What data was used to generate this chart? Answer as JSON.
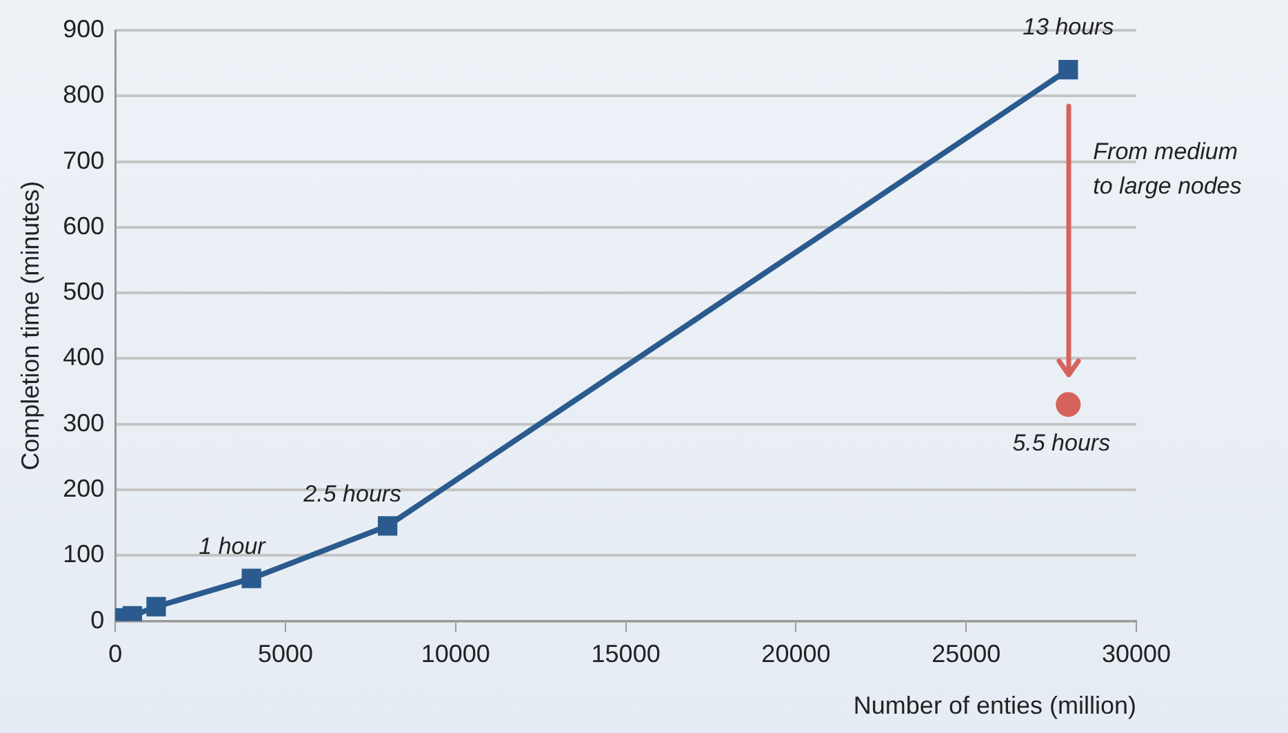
{
  "chart_data": {
    "type": "line",
    "xlabel": "Number of enties (million)",
    "ylabel": "Completion time (minutes)",
    "xlim": [
      0,
      30000
    ],
    "xticks": [
      0,
      5000,
      10000,
      15000,
      20000,
      25000,
      30000
    ],
    "ylim": [
      0,
      900
    ],
    "yticks": [
      0,
      100,
      200,
      300,
      400,
      500,
      600,
      700,
      800,
      900
    ],
    "grid": "y",
    "legend": false,
    "series": [
      {
        "color": "#2b5b8e",
        "marker": "square",
        "x": [
          100,
          500,
          1200,
          4000,
          8000,
          28000
        ],
        "values": [
          5,
          8,
          22,
          65,
          145,
          840
        ]
      },
      {
        "type": "scatter",
        "color": "#d6625c",
        "marker": "circle",
        "x": [
          28000
        ],
        "values": [
          330
        ]
      }
    ],
    "annotations": [
      {
        "text": "13 hours",
        "x": 28000,
        "y": 840
      },
      {
        "text": "2.5 hours",
        "x": 8000,
        "y": 145
      },
      {
        "text": "1 hour",
        "x": 4000,
        "y": 65
      },
      {
        "text": "5.5 hours",
        "x": 28000,
        "y": 330
      },
      "From medium to large nodes"
    ]
  }
}
